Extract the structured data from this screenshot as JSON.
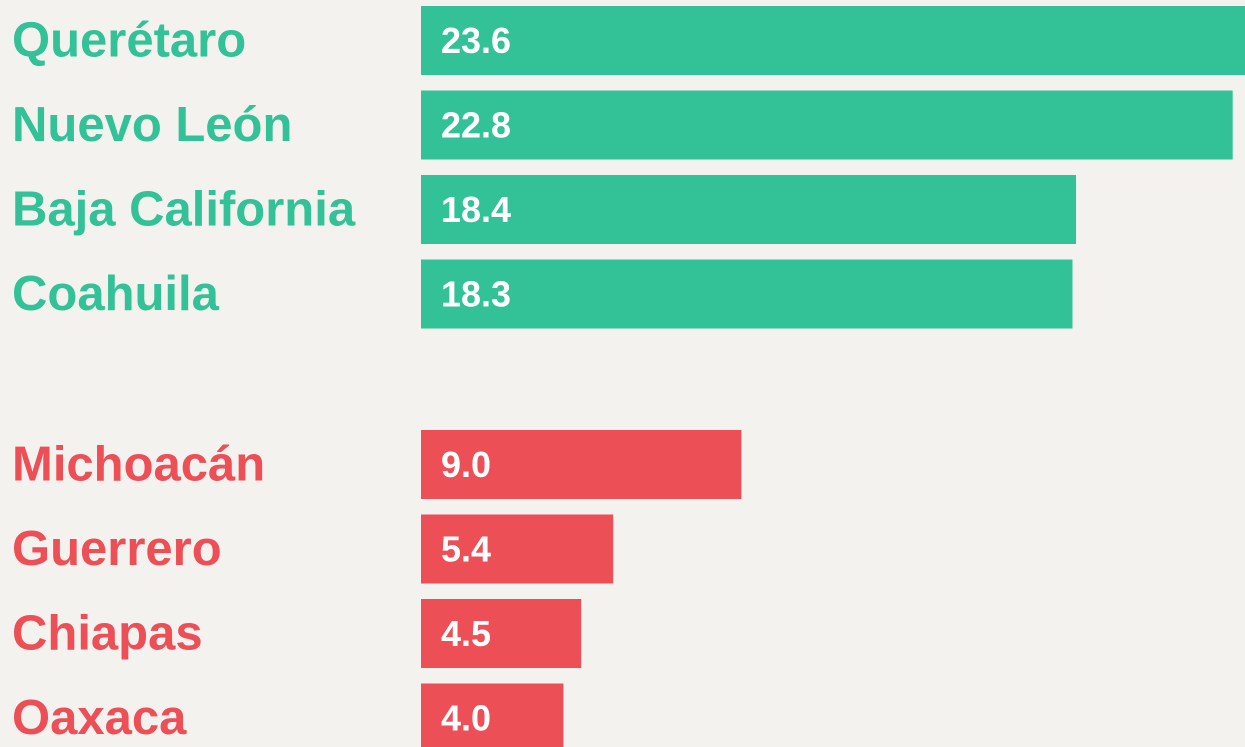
{
  "chart_data": [
    {
      "type": "bar",
      "orientation": "horizontal",
      "color": "#33c197",
      "categories": [
        "Querétaro",
        "Nuevo León",
        "Baja California",
        "Coahuila"
      ],
      "values": [
        23.6,
        22.8,
        18.4,
        18.3
      ],
      "value_labels": [
        "23.6",
        "22.8",
        "18.4",
        "18.3"
      ]
    },
    {
      "type": "bar",
      "orientation": "horizontal",
      "color": "#ec4f55",
      "categories": [
        "Michoacán",
        "Guerrero",
        "Chiapas",
        "Oaxaca"
      ],
      "values": [
        9.0,
        5.4,
        4.5,
        4.0
      ],
      "value_labels": [
        "9.0",
        "5.4",
        "4.5",
        "4.0"
      ]
    }
  ]
}
